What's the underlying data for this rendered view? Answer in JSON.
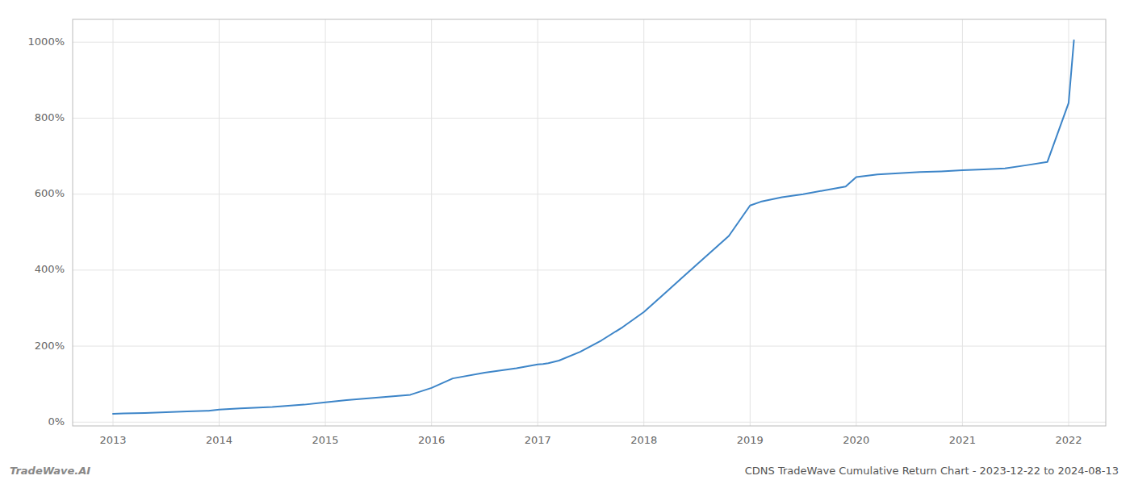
{
  "chart_data": {
    "type": "line",
    "title": "CDNS TradeWave Cumulative Return Chart - 2023-12-22 to 2024-08-13",
    "annotations": [
      "TradeWave.AI"
    ],
    "color": "#3d85c8",
    "grid": true,
    "x": [
      2013.0,
      2013.1,
      2013.3,
      2013.5,
      2013.7,
      2013.9,
      2014.0,
      2014.2,
      2014.5,
      2014.8,
      2015.0,
      2015.2,
      2015.5,
      2015.8,
      2016.0,
      2016.2,
      2016.5,
      2016.8,
      2017.0,
      2017.05,
      2017.1,
      2017.2,
      2017.4,
      2017.6,
      2017.8,
      2018.0,
      2018.2,
      2018.4,
      2018.6,
      2018.8,
      2019.0,
      2019.1,
      2019.3,
      2019.5,
      2019.7,
      2019.9,
      2020.0,
      2020.2,
      2020.4,
      2020.6,
      2020.8,
      2021.0,
      2021.2,
      2021.4,
      2021.6,
      2021.8,
      2022.0,
      2022.05
    ],
    "values": [
      22,
      23,
      24,
      26,
      28,
      30,
      33,
      36,
      40,
      46,
      52,
      58,
      65,
      72,
      90,
      115,
      130,
      142,
      152,
      153,
      155,
      162,
      185,
      215,
      250,
      290,
      340,
      390,
      440,
      490,
      570,
      580,
      592,
      600,
      610,
      620,
      645,
      652,
      655,
      658,
      660,
      663,
      665,
      668,
      676,
      685,
      840,
      1005
    ],
    "xlim": [
      2012.62,
      2022.35
    ],
    "ylim": [
      -10,
      1060
    ],
    "xticks": [
      2013,
      2014,
      2015,
      2016,
      2017,
      2018,
      2019,
      2020,
      2021,
      2022
    ],
    "yticks": [
      {
        "value": 0,
        "label": "0%"
      },
      {
        "value": 200,
        "label": "200%"
      },
      {
        "value": 400,
        "label": "400%"
      },
      {
        "value": 600,
        "label": "600%"
      },
      {
        "value": 800,
        "label": "800%"
      },
      {
        "value": 1000,
        "label": "1000%"
      }
    ]
  }
}
